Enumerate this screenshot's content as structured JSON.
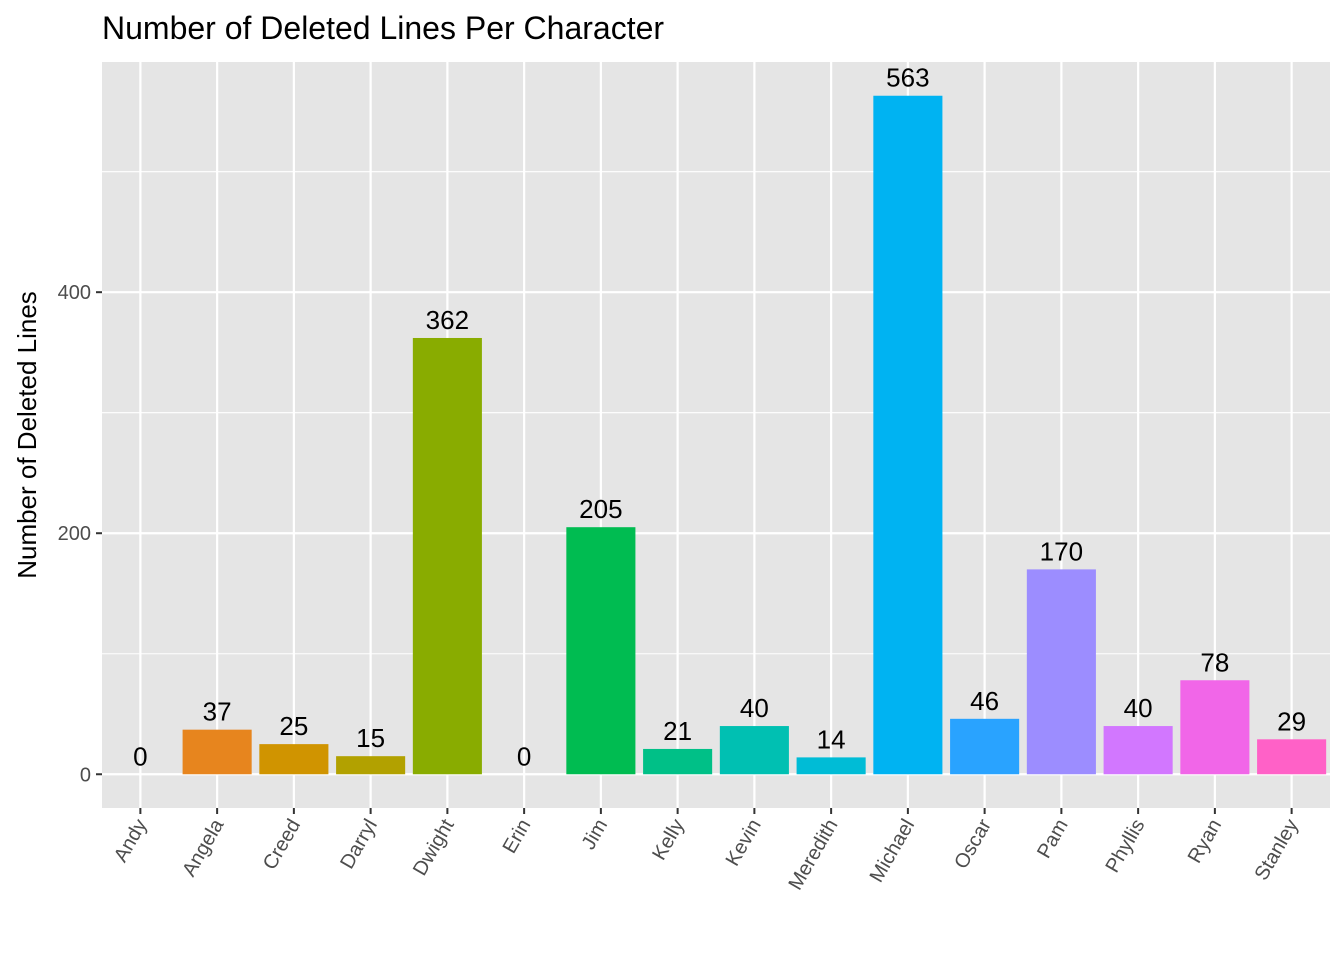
{
  "chart_data": {
    "type": "bar",
    "title": "Number of Deleted Lines Per Character",
    "xlabel": "",
    "ylabel": "Number of Deleted Lines",
    "categories": [
      "Andy",
      "Angela",
      "Creed",
      "Darryl",
      "Dwight",
      "Erin",
      "Jim",
      "Kelly",
      "Kevin",
      "Meredith",
      "Michael",
      "Oscar",
      "Pam",
      "Phyllis",
      "Ryan",
      "Stanley"
    ],
    "values": [
      0,
      37,
      25,
      15,
      362,
      0,
      205,
      21,
      40,
      14,
      563,
      46,
      170,
      40,
      78,
      29
    ],
    "data_labels": [
      "0",
      "37",
      "25",
      "15",
      "362",
      "0",
      "205",
      "21",
      "40",
      "14",
      "563",
      "46",
      "170",
      "40",
      "78",
      "29"
    ],
    "colors": [
      "#F8766D",
      "#E7851E",
      "#D09400",
      "#B2A100",
      "#89AC00",
      "#45B500",
      "#00BC51",
      "#00C087",
      "#00C0B2",
      "#00BCD6",
      "#00B3F2",
      "#29A3FF",
      "#9C8DFF",
      "#D277FF",
      "#F166E8",
      "#FF61C7"
    ],
    "yticks": [
      0,
      200,
      400
    ],
    "ytick_labels": [
      "0",
      "200",
      "400"
    ],
    "ylim": [
      -28,
      591
    ],
    "grid": true,
    "legend": "none",
    "panel_background": "#E5E5E5",
    "grid_color": "#FFFFFF"
  }
}
